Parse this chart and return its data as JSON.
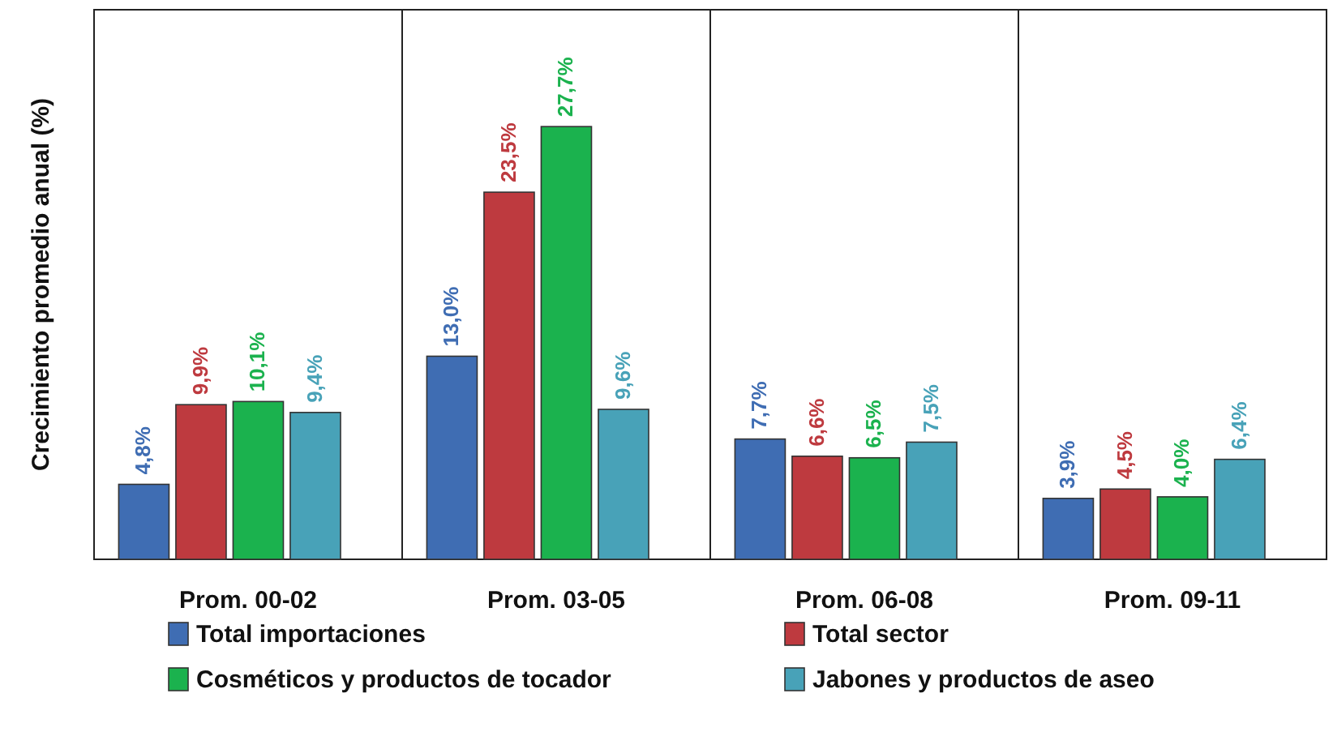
{
  "chart_data": {
    "type": "bar",
    "ylabel": "Crecimiento promedio anual (%)",
    "categories": [
      "Prom. 00-02",
      "Prom. 03-05",
      "Prom. 06-08",
      "Prom. 09-11"
    ],
    "series": [
      {
        "name": "Total importaciones",
        "color": "#3f6db3",
        "values": [
          4.8,
          13.0,
          7.7,
          3.9
        ],
        "value_labels": [
          "4,8%",
          "13,0%",
          "7,7%",
          "3,9%"
        ]
      },
      {
        "name": "Total sector",
        "color": "#be3a3f",
        "values": [
          9.9,
          23.5,
          6.6,
          4.5
        ],
        "value_labels": [
          "9,9%",
          "23,5%",
          "6,6%",
          "4,5%"
        ]
      },
      {
        "name": "Cosméticos y productos de tocador",
        "color": "#1bb24e",
        "values": [
          10.1,
          27.7,
          6.5,
          4.0
        ],
        "value_labels": [
          "10,1%",
          "27,7%",
          "6,5%",
          "4,0%"
        ]
      },
      {
        "name": "Jabones y productos de aseo",
        "color": "#48a2b8",
        "values": [
          9.4,
          9.6,
          7.5,
          6.4
        ],
        "value_labels": [
          "9,4%",
          "9,6%",
          "7,5%",
          "6,4%"
        ]
      }
    ],
    "legend": "bottom"
  }
}
